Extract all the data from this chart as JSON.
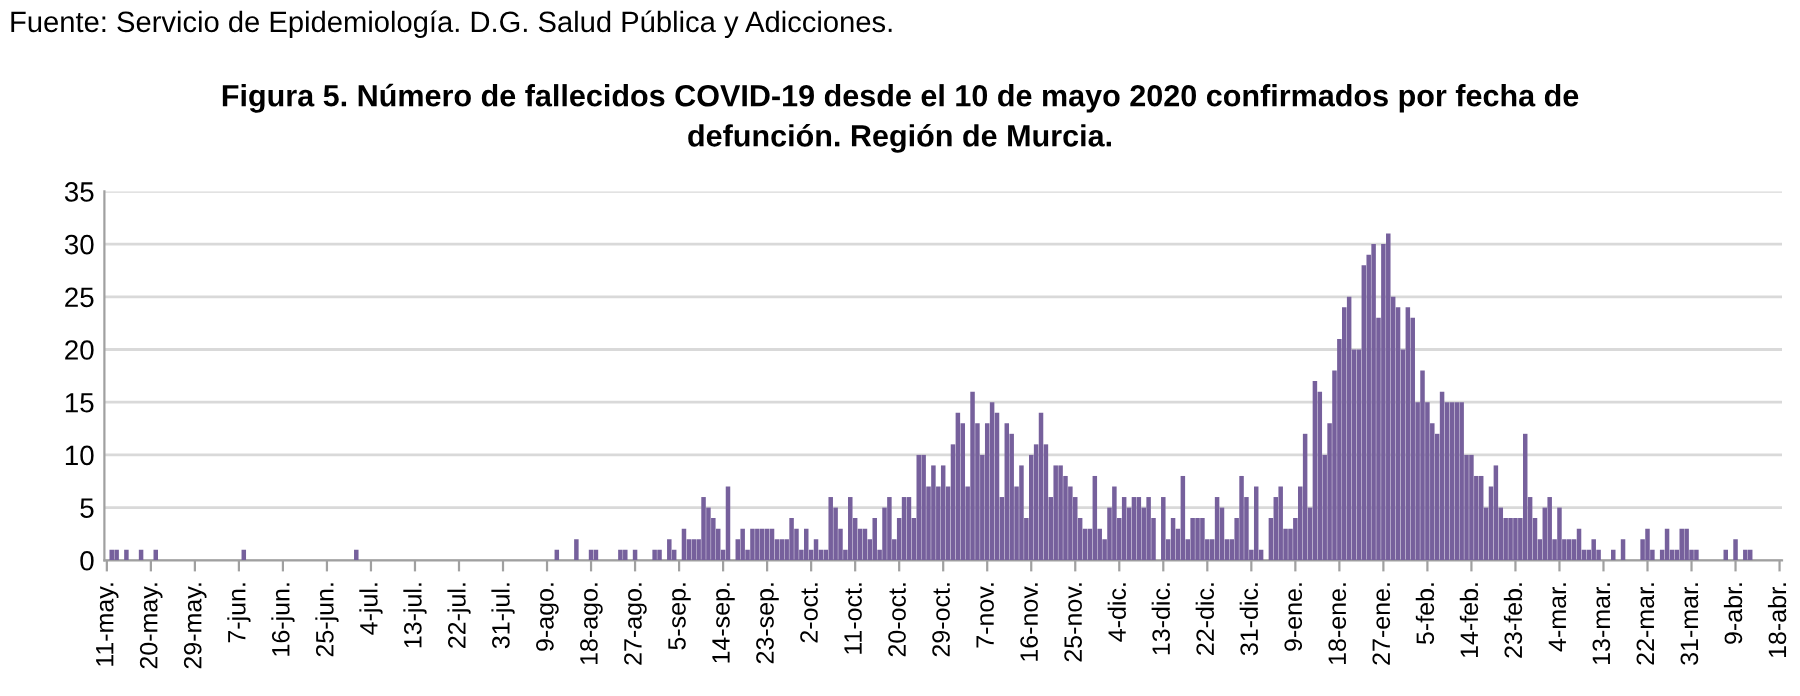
{
  "chart_data": {
    "type": "bar",
    "title": "Figura 5. Número de fallecidos COVID-19 desde el 10 de mayo 2020 confirmados por fecha de\ndefunción. Región de Murcia.",
    "annotations": [
      "Fuente: Servicio de Epidemiología. D.G. Salud Pública y Adicciones."
    ],
    "categories": [
      "11-may.",
      null,
      null,
      null,
      null,
      null,
      null,
      null,
      null,
      "20-may.",
      null,
      null,
      null,
      null,
      null,
      null,
      null,
      null,
      "29-may.",
      null,
      null,
      null,
      null,
      null,
      null,
      null,
      null,
      "7-jun.",
      null,
      null,
      null,
      null,
      null,
      null,
      null,
      null,
      "16-jun.",
      null,
      null,
      null,
      null,
      null,
      null,
      null,
      null,
      "25-jun.",
      null,
      null,
      null,
      null,
      null,
      null,
      null,
      null,
      "4-jul.",
      null,
      null,
      null,
      null,
      null,
      null,
      null,
      null,
      "13-jul.",
      null,
      null,
      null,
      null,
      null,
      null,
      null,
      null,
      "22-jul.",
      null,
      null,
      null,
      null,
      null,
      null,
      null,
      null,
      "31-jul.",
      null,
      null,
      null,
      null,
      null,
      null,
      null,
      null,
      "9-ago.",
      null,
      null,
      null,
      null,
      null,
      null,
      null,
      null,
      "18-ago.",
      null,
      null,
      null,
      null,
      null,
      null,
      null,
      null,
      "27-ago.",
      null,
      null,
      null,
      null,
      null,
      null,
      null,
      null,
      "5-sep.",
      null,
      null,
      null,
      null,
      null,
      null,
      null,
      null,
      "14-sep.",
      null,
      null,
      null,
      null,
      null,
      null,
      null,
      null,
      "23-sep.",
      null,
      null,
      null,
      null,
      null,
      null,
      null,
      null,
      "2-oct.",
      null,
      null,
      null,
      null,
      null,
      null,
      null,
      null,
      "11-oct.",
      null,
      null,
      null,
      null,
      null,
      null,
      null,
      null,
      "20-oct.",
      null,
      null,
      null,
      null,
      null,
      null,
      null,
      null,
      "29-oct.",
      null,
      null,
      null,
      null,
      null,
      null,
      null,
      null,
      "7-nov.",
      null,
      null,
      null,
      null,
      null,
      null,
      null,
      null,
      "16-nov.",
      null,
      null,
      null,
      null,
      null,
      null,
      null,
      null,
      "25-nov.",
      null,
      null,
      null,
      null,
      null,
      null,
      null,
      null,
      "4-dic.",
      null,
      null,
      null,
      null,
      null,
      null,
      null,
      null,
      "13-dic.",
      null,
      null,
      null,
      null,
      null,
      null,
      null,
      null,
      "22-dic.",
      null,
      null,
      null,
      null,
      null,
      null,
      null,
      null,
      "31-dic.",
      null,
      null,
      null,
      null,
      null,
      null,
      null,
      null,
      "9-ene.",
      null,
      null,
      null,
      null,
      null,
      null,
      null,
      null,
      "18-ene.",
      null,
      null,
      null,
      null,
      null,
      null,
      null,
      null,
      "27-ene.",
      null,
      null,
      null,
      null,
      null,
      null,
      null,
      null,
      "5-feb.",
      null,
      null,
      null,
      null,
      null,
      null,
      null,
      null,
      "14-feb.",
      null,
      null,
      null,
      null,
      null,
      null,
      null,
      null,
      "23-feb.",
      null,
      null,
      null,
      null,
      null,
      null,
      null,
      null,
      "4-mar.",
      null,
      null,
      null,
      null,
      null,
      null,
      null,
      null,
      "13-mar.",
      null,
      null,
      null,
      null,
      null,
      null,
      null,
      null,
      "22-mar.",
      null,
      null,
      null,
      null,
      null,
      null,
      null,
      null,
      "31-mar.",
      null,
      null,
      null,
      null,
      null,
      null,
      null,
      null,
      "9-abr.",
      null,
      null,
      null,
      null,
      null,
      null,
      null,
      null,
      "18-abr."
    ],
    "values": [
      0,
      1,
      1,
      0,
      1,
      0,
      0,
      1,
      0,
      0,
      1,
      0,
      0,
      0,
      0,
      0,
      0,
      0,
      0,
      0,
      0,
      0,
      0,
      0,
      0,
      0,
      0,
      0,
      1,
      0,
      0,
      0,
      0,
      0,
      0,
      0,
      0,
      0,
      0,
      0,
      0,
      0,
      0,
      0,
      0,
      0,
      0,
      0,
      0,
      0,
      0,
      1,
      0,
      0,
      0,
      0,
      0,
      0,
      0,
      0,
      0,
      0,
      0,
      0,
      0,
      0,
      0,
      0,
      0,
      0,
      0,
      0,
      0,
      0,
      0,
      0,
      0,
      0,
      0,
      0,
      0,
      0,
      0,
      0,
      0,
      0,
      0,
      0,
      0,
      0,
      0,
      0,
      1,
      0,
      0,
      0,
      2,
      0,
      0,
      1,
      1,
      0,
      0,
      0,
      0,
      1,
      1,
      0,
      1,
      0,
      0,
      0,
      1,
      1,
      0,
      2,
      1,
      0,
      3,
      2,
      2,
      2,
      6,
      5,
      4,
      3,
      1,
      7,
      0,
      2,
      3,
      1,
      3,
      3,
      3,
      3,
      3,
      2,
      2,
      2,
      4,
      3,
      1,
      3,
      1,
      2,
      1,
      1,
      6,
      5,
      3,
      1,
      6,
      4,
      3,
      3,
      2,
      4,
      1,
      5,
      6,
      2,
      4,
      6,
      6,
      4,
      10,
      10,
      7,
      9,
      7,
      9,
      7,
      11,
      14,
      13,
      7,
      16,
      13,
      10,
      13,
      15,
      14,
      6,
      13,
      12,
      7,
      9,
      4,
      10,
      11,
      14,
      11,
      6,
      9,
      9,
      8,
      7,
      6,
      4,
      3,
      3,
      8,
      3,
      2,
      5,
      7,
      4,
      6,
      5,
      6,
      6,
      5,
      6,
      4,
      0,
      6,
      2,
      4,
      3,
      8,
      2,
      4,
      4,
      4,
      2,
      2,
      6,
      5,
      2,
      2,
      4,
      8,
      6,
      1,
      7,
      1,
      0,
      4,
      6,
      7,
      3,
      3,
      4,
      7,
      12,
      5,
      17,
      16,
      10,
      13,
      18,
      21,
      24,
      25,
      20,
      20,
      28,
      29,
      30,
      23,
      30,
      31,
      25,
      24,
      20,
      24,
      23,
      15,
      18,
      15,
      13,
      12,
      16,
      15,
      15,
      15,
      15,
      10,
      10,
      8,
      8,
      5,
      7,
      9,
      5,
      4,
      4,
      4,
      4,
      12,
      6,
      4,
      2,
      5,
      6,
      2,
      5,
      2,
      2,
      2,
      3,
      1,
      1,
      2,
      1,
      0,
      0,
      1,
      0,
      2,
      0,
      0,
      0,
      2,
      3,
      1,
      0,
      1,
      3,
      1,
      1,
      3,
      3,
      1,
      1,
      0,
      0,
      0,
      0,
      0,
      1,
      0,
      2,
      0,
      1,
      1,
      0,
      0,
      0,
      0,
      0,
      0
    ],
    "color": "#76609c",
    "ylim": [
      0,
      35
    ],
    "yticks": [
      0,
      5,
      10,
      15,
      20,
      25,
      30,
      35
    ],
    "grid": "y"
  }
}
